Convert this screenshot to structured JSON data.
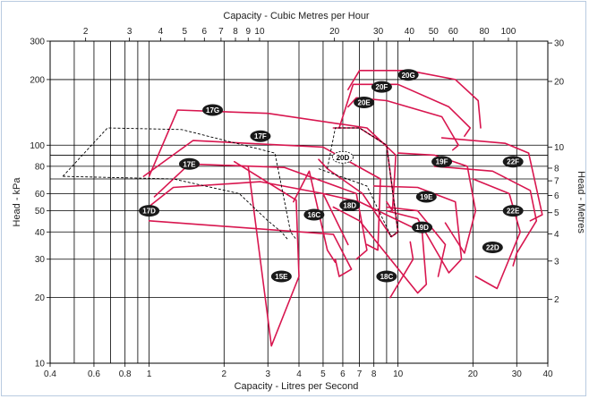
{
  "chart_data": {
    "type": "line",
    "title": "",
    "xlabel_bottom": "Capacity - Litres per Second",
    "xlabel_top": "Capacity - Cubic Metres per Hour",
    "ylabel_left": "Head - kPa",
    "ylabel_right": "Head - Metres",
    "xscale": "log",
    "yscale": "log",
    "xlim": [
      0.4,
      40
    ],
    "ylim": [
      10,
      300
    ],
    "grid": true,
    "colors": {
      "curve": "#d8164f",
      "grid": "#000000",
      "dashed": "#000000",
      "badge": "#1a1a1a",
      "frame": "#b9cbe0"
    },
    "bottom_ticks": [
      {
        "v": 0.4,
        "label": "0.4"
      },
      {
        "v": 0.6,
        "label": "0.6"
      },
      {
        "v": 0.8,
        "label": "0.8"
      },
      {
        "v": 1,
        "label": "1"
      },
      {
        "v": 2,
        "label": "2"
      },
      {
        "v": 3,
        "label": "3"
      },
      {
        "v": 4,
        "label": "4"
      },
      {
        "v": 5,
        "label": "5"
      },
      {
        "v": 6,
        "label": "6"
      },
      {
        "v": 7,
        "label": "7"
      },
      {
        "v": 8,
        "label": "8"
      },
      {
        "v": 10,
        "label": "10"
      },
      {
        "v": 20,
        "label": "20"
      },
      {
        "v": 30,
        "label": "30"
      },
      {
        "v": 40,
        "label": "40"
      }
    ],
    "top_ticks": [
      {
        "v": 2,
        "label": "2"
      },
      {
        "v": 3,
        "label": "3"
      },
      {
        "v": 4,
        "label": "4"
      },
      {
        "v": 5,
        "label": "5"
      },
      {
        "v": 6,
        "label": "6"
      },
      {
        "v": 7,
        "label": "7"
      },
      {
        "v": 8,
        "label": "8"
      },
      {
        "v": 9,
        "label": "9"
      },
      {
        "v": 10,
        "label": "10"
      },
      {
        "v": 20,
        "label": "20"
      },
      {
        "v": 30,
        "label": "30"
      },
      {
        "v": 40,
        "label": "40"
      },
      {
        "v": 50,
        "label": "50"
      },
      {
        "v": 60,
        "label": "60"
      },
      {
        "v": 80,
        "label": "80"
      },
      {
        "v": 100,
        "label": "100"
      }
    ],
    "left_ticks": [
      {
        "v": 10,
        "label": "10"
      },
      {
        "v": 20,
        "label": "20"
      },
      {
        "v": 30,
        "label": "30"
      },
      {
        "v": 40,
        "label": "40"
      },
      {
        "v": 50,
        "label": "50"
      },
      {
        "v": 60,
        "label": "60"
      },
      {
        "v": 80,
        "label": "80"
      },
      {
        "v": 100,
        "label": "100"
      },
      {
        "v": 200,
        "label": "200"
      },
      {
        "v": 300,
        "label": "300"
      }
    ],
    "right_ticks": [
      {
        "v": 2,
        "label": "2"
      },
      {
        "v": 3,
        "label": "3"
      },
      {
        "v": 4,
        "label": "4"
      },
      {
        "v": 5,
        "label": "5"
      },
      {
        "v": 6,
        "label": "6"
      },
      {
        "v": 7,
        "label": "7"
      },
      {
        "v": 8,
        "label": "8"
      },
      {
        "v": 10,
        "label": "10"
      },
      {
        "v": 20,
        "label": "20"
      },
      {
        "v": 30,
        "label": "30"
      }
    ],
    "grid_x": [
      0.5,
      0.6,
      0.7,
      0.8,
      0.9,
      1,
      2,
      3,
      4,
      5,
      6,
      7,
      8,
      9,
      10,
      20,
      30,
      40
    ],
    "grid_y": [
      20,
      30,
      40,
      50,
      60,
      70,
      80,
      90,
      100,
      200,
      300
    ],
    "series": [
      {
        "name": "15E",
        "label_at": [
          3.4,
          25
        ],
        "points": [
          [
            3.0,
            16
          ],
          [
            3.1,
            12
          ],
          [
            4.0,
            25
          ],
          [
            3.9,
            56
          ],
          [
            2.2,
            84
          ]
        ]
      },
      {
        "name": "15E",
        "label_at": [
          3.4,
          25
        ],
        "points": [
          [
            3.0,
            16
          ],
          [
            2.5,
            80
          ]
        ]
      },
      {
        "name": "16C",
        "label_at": [
          4.6,
          48
        ],
        "points": [
          [
            3.8,
            55
          ],
          [
            4.4,
            76
          ],
          [
            5.2,
            33
          ],
          [
            5.6,
            29
          ]
        ]
      },
      {
        "name": "17D",
        "label_at": [
          1.0,
          50
        ],
        "points": [
          [
            1.0,
            45
          ],
          [
            5.5,
            39
          ],
          [
            6.5,
            27
          ],
          [
            5.8,
            25
          ],
          [
            5.6,
            30
          ]
        ]
      },
      {
        "name": "17D",
        "label_at": [
          1.0,
          50
        ],
        "points": [
          [
            0.95,
            50
          ],
          [
            1.25,
            64
          ],
          [
            2.8,
            68
          ],
          [
            5.0,
            60
          ],
          [
            6.3,
            35
          ]
        ]
      },
      {
        "name": "17E",
        "label_at": [
          1.45,
          82
        ],
        "points": [
          [
            1.05,
            58
          ],
          [
            1.45,
            82
          ],
          [
            3.5,
            79
          ],
          [
            6.8,
            60
          ],
          [
            7.5,
            33
          ],
          [
            6.8,
            30
          ]
        ]
      },
      {
        "name": "17F",
        "label_at": [
          2.8,
          110
        ],
        "points": [
          [
            0.95,
            72
          ],
          [
            1.5,
            105
          ],
          [
            5.0,
            98
          ],
          [
            8.5,
            70
          ],
          [
            8.3,
            33
          ],
          [
            7.5,
            35
          ]
        ]
      },
      {
        "name": "17G",
        "label_at": [
          1.8,
          145
        ],
        "points": [
          [
            1.0,
            72
          ],
          [
            1.3,
            145
          ],
          [
            3.0,
            140
          ],
          [
            7.5,
            120
          ],
          [
            9.8,
            90
          ],
          [
            9.5,
            50
          ],
          [
            9.0,
            55
          ]
        ]
      },
      {
        "name": "18C",
        "label_at": [
          9.0,
          25
        ],
        "points": [
          [
            9.3,
            20
          ],
          [
            11.5,
            30
          ],
          [
            11.2,
            36
          ]
        ]
      },
      {
        "name": "18D",
        "label_at": [
          6.4,
          53
        ],
        "points": [
          [
            5.0,
            60
          ],
          [
            7.0,
            55
          ],
          [
            12.5,
            40
          ],
          [
            13.0,
            23
          ],
          [
            12.0,
            21
          ],
          [
            7.0,
            45
          ],
          [
            5.5,
            52
          ]
        ]
      },
      {
        "name": "19D",
        "label_at": [
          12.5,
          42
        ],
        "points": [
          [
            9.0,
            52
          ],
          [
            12.0,
            50
          ],
          [
            15.5,
            35
          ],
          [
            14.5,
            25
          ]
        ]
      },
      {
        "name": "19E",
        "label_at": [
          13.0,
          58
        ],
        "points": [
          [
            8.0,
            65
          ],
          [
            12.0,
            64
          ],
          [
            17.0,
            55
          ],
          [
            18.0,
            30
          ],
          [
            16.0,
            26
          ],
          [
            12.0,
            46
          ],
          [
            9.0,
            50
          ]
        ]
      },
      {
        "name": "19F",
        "label_at": [
          15.0,
          84
        ],
        "points": [
          [
            10.0,
            92
          ],
          [
            14.0,
            90
          ],
          [
            19.0,
            80
          ],
          [
            20.5,
            50
          ],
          [
            18.5,
            32
          ],
          [
            15.5,
            44
          ]
        ]
      },
      {
        "name": "20D",
        "label_at": [
          6.0,
          88
        ],
        "points": [
          [
            5.5,
            120
          ],
          [
            7.0,
            120
          ],
          [
            9.0,
            100
          ],
          [
            10.0,
            40
          ],
          [
            9.4,
            38
          ],
          [
            7.2,
            60
          ],
          [
            5.2,
            78
          ],
          [
            4.8,
            86
          ]
        ]
      },
      {
        "name": "20E",
        "label_at": [
          7.3,
          157
        ],
        "points": [
          [
            6.3,
            150
          ],
          [
            6.8,
            165
          ],
          [
            9.0,
            160
          ],
          [
            15.0,
            135
          ],
          [
            17.5,
            100
          ],
          [
            16.6,
            95
          ]
        ]
      },
      {
        "name": "20F",
        "label_at": [
          8.6,
          185
        ],
        "points": [
          [
            5.8,
            120
          ],
          [
            6.6,
            190
          ],
          [
            10.0,
            190
          ],
          [
            16.0,
            150
          ],
          [
            19.5,
            120
          ],
          [
            18.5,
            110
          ]
        ]
      },
      {
        "name": "20G",
        "label_at": [
          11.0,
          210
        ],
        "points": [
          [
            6.3,
            180
          ],
          [
            7.0,
            220
          ],
          [
            11.0,
            220
          ],
          [
            17.0,
            200
          ],
          [
            21.0,
            160
          ],
          [
            21.5,
            120
          ]
        ]
      },
      {
        "name": "22D",
        "label_at": [
          24.0,
          34
        ],
        "points": [
          [
            20.0,
            70
          ],
          [
            28.0,
            60
          ],
          [
            31.0,
            40
          ],
          [
            25.0,
            22
          ],
          [
            20.5,
            25
          ]
        ]
      },
      {
        "name": "22E",
        "label_at": [
          29.0,
          50
        ],
        "points": [
          [
            14.0,
            80
          ],
          [
            24.0,
            76
          ],
          [
            34.0,
            62
          ],
          [
            36.0,
            45
          ],
          [
            30.0,
            32
          ],
          [
            29.0,
            28
          ]
        ]
      },
      {
        "name": "22F",
        "label_at": [
          29.0,
          84
        ],
        "points": [
          [
            15.0,
            108
          ],
          [
            27.0,
            102
          ],
          [
            33.5,
            92
          ],
          [
            38.0,
            48
          ],
          [
            34.0,
            45
          ]
        ]
      }
    ],
    "dashed_outlines": [
      [
        [
          0.45,
          72
        ],
        [
          0.68,
          120
        ],
        [
          1.35,
          118
        ],
        [
          3.2,
          92
        ],
        [
          3.7,
          40
        ],
        [
          3.9,
          37
        ]
      ],
      [
        [
          0.45,
          72
        ],
        [
          1.25,
          70
        ],
        [
          2.3,
          60
        ],
        [
          3.0,
          45
        ],
        [
          3.4,
          40
        ],
        [
          3.6,
          37
        ]
      ],
      [
        [
          5.2,
          78
        ],
        [
          5.6,
          120
        ],
        [
          7.0,
          120
        ],
        [
          9.0,
          100
        ],
        [
          10.0,
          40
        ],
        [
          9.3,
          38
        ]
      ],
      [
        [
          4.8,
          78
        ],
        [
          7.5,
          65
        ],
        [
          9.4,
          38
        ]
      ]
    ]
  }
}
